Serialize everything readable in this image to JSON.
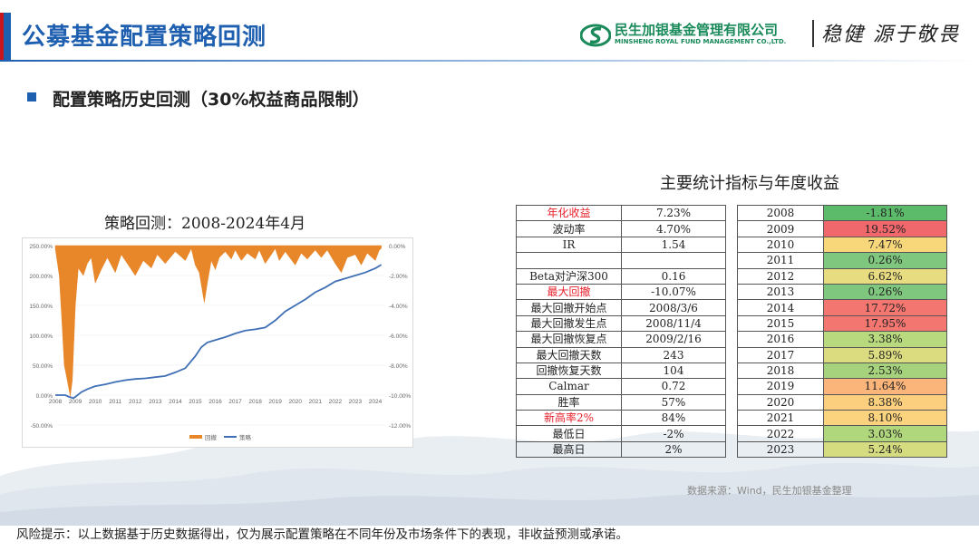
{
  "header": {
    "title": "公募基金配置策略回测",
    "logo_cn": "民生加银基金管理有限公司",
    "logo_en": "MINSHENG ROYAL FUND MANAGEMENT CO.,LTD.",
    "slogan": "稳健 源于敬畏"
  },
  "section": {
    "heading": "配置策略历史回测（30%权益商品限制）"
  },
  "chart_data": {
    "type": "line",
    "title": "策略回测：2008-2024年4月",
    "x_ticks": [
      "2008",
      "2009",
      "2010",
      "2011",
      "2012",
      "2013",
      "2014",
      "2015",
      "2016",
      "2017",
      "2018",
      "2019",
      "2020",
      "2021",
      "2022",
      "2023",
      "2024"
    ],
    "y_left_ticks": [
      "250.00%",
      "200.00%",
      "150.00%",
      "100.00%",
      "50.00%",
      "0.00%",
      "-50.00%"
    ],
    "y_left_lim": [
      -50,
      250
    ],
    "y_right_ticks": [
      "0.00%",
      "-2.00%",
      "-4.00%",
      "-6.00%",
      "-8.00%",
      "-10.00%",
      "-12.00%"
    ],
    "y_right_lim": [
      -12,
      0
    ],
    "legend": [
      "回撤",
      "策略"
    ],
    "legend_position": "bottom",
    "colors": {
      "drawdown": "#e8862a",
      "strategy": "#3f6fb5"
    },
    "series": [
      {
        "name": "策略",
        "axis": "left",
        "x": [
          2008.0,
          2008.5,
          2008.7,
          2008.9,
          2009.0,
          2009.3,
          2009.6,
          2010.0,
          2010.5,
          2011.0,
          2011.5,
          2012.0,
          2012.5,
          2013.0,
          2013.5,
          2014.0,
          2014.5,
          2015.0,
          2015.3,
          2015.6,
          2016.0,
          2016.5,
          2017.0,
          2017.5,
          2018.0,
          2018.5,
          2019.0,
          2019.5,
          2020.0,
          2020.5,
          2021.0,
          2021.5,
          2022.0,
          2022.5,
          2023.0,
          2023.5,
          2024.0,
          2024.3
        ],
        "values": [
          0,
          0,
          -3,
          -5,
          -3,
          5,
          10,
          15,
          18,
          22,
          25,
          27,
          28,
          30,
          32,
          38,
          45,
          65,
          80,
          88,
          92,
          97,
          103,
          108,
          110,
          113,
          125,
          140,
          150,
          160,
          172,
          180,
          190,
          195,
          200,
          205,
          212,
          218
        ]
      },
      {
        "name": "回撤",
        "axis": "right",
        "x": [
          2008.0,
          2008.2,
          2008.35,
          2008.45,
          2008.6,
          2008.75,
          2008.85,
          2009.0,
          2009.15,
          2009.4,
          2009.6,
          2009.8,
          2010.0,
          2010.3,
          2010.6,
          2011.0,
          2011.3,
          2011.6,
          2012.0,
          2012.4,
          2012.8,
          2013.1,
          2013.5,
          2014.0,
          2014.5,
          2014.8,
          2015.0,
          2015.2,
          2015.45,
          2015.6,
          2015.8,
          2016.0,
          2016.2,
          2016.5,
          2016.8,
          2017.0,
          2017.3,
          2017.6,
          2018.0,
          2018.2,
          2018.5,
          2018.8,
          2019.0,
          2019.2,
          2019.5,
          2020.0,
          2020.3,
          2020.6,
          2021.0,
          2021.3,
          2021.6,
          2022.0,
          2022.3,
          2022.6,
          2023.0,
          2023.3,
          2023.6,
          2024.0,
          2024.2,
          2024.3
        ],
        "values": [
          -0.2,
          -2.0,
          -5.5,
          -8.0,
          -9.0,
          -10.07,
          -9.0,
          -4.0,
          -1.5,
          -2.0,
          -1.2,
          -0.8,
          -2.5,
          -1.6,
          -0.8,
          -1.8,
          -0.6,
          -1.2,
          -2.0,
          -1.0,
          -1.5,
          -0.6,
          -1.2,
          -0.4,
          -1.0,
          -0.2,
          -1.3,
          -1.8,
          -3.8,
          -2.5,
          -1.0,
          -1.6,
          -0.8,
          -0.4,
          -0.9,
          -0.3,
          -1.0,
          -0.5,
          -0.9,
          -0.3,
          -1.2,
          -0.6,
          -0.2,
          -1.0,
          -0.4,
          -1.3,
          -0.5,
          -0.9,
          -0.3,
          -0.8,
          -0.3,
          -1.2,
          -1.8,
          -0.8,
          -0.6,
          -1.3,
          -0.5,
          -1.0,
          -0.3,
          -0.2
        ]
      }
    ]
  },
  "stats_table": {
    "title": "主要统计指标与年度收益",
    "rows": [
      {
        "label": "年化收益",
        "value": "7.23%",
        "highlight": true
      },
      {
        "label": "波动率",
        "value": "4.70%",
        "highlight": false
      },
      {
        "label": "IR",
        "value": "1.54",
        "highlight": false
      },
      {
        "label": "",
        "value": "",
        "highlight": false
      },
      {
        "label": "Beta对沪深300",
        "value": "0.16",
        "highlight": false
      },
      {
        "label": "最大回撤",
        "value": "-10.07%",
        "highlight": true
      },
      {
        "label": "最大回撤开始点",
        "value": "2008/3/6",
        "highlight": false
      },
      {
        "label": "最大回撤发生点",
        "value": "2008/11/4",
        "highlight": false
      },
      {
        "label": "最大回撤恢复点",
        "value": "2009/2/16",
        "highlight": false
      },
      {
        "label": "最大回撤天数",
        "value": "243",
        "highlight": false
      },
      {
        "label": "回撤恢复天数",
        "value": "104",
        "highlight": false
      },
      {
        "label": "Calmar",
        "value": "0.72",
        "highlight": false
      },
      {
        "label": "胜率",
        "value": "57%",
        "highlight": false
      },
      {
        "label": "新高率2%",
        "value": "84%",
        "highlight": true
      },
      {
        "label": "最低日",
        "value": "-2%",
        "highlight": false
      },
      {
        "label": "最高日",
        "value": "2%",
        "highlight": false
      }
    ]
  },
  "annual_returns": [
    {
      "year": "2008",
      "return": "-1.81%",
      "color": "#5cbb6a"
    },
    {
      "year": "2009",
      "return": "19.52%",
      "color": "#f0686c"
    },
    {
      "year": "2010",
      "return": "7.47%",
      "color": "#f8d77b"
    },
    {
      "year": "2011",
      "return": "0.26%",
      "color": "#7fc77e"
    },
    {
      "year": "2012",
      "return": "6.62%",
      "color": "#e8dc80"
    },
    {
      "year": "2013",
      "return": "0.26%",
      "color": "#7fc77e"
    },
    {
      "year": "2014",
      "return": "17.72%",
      "color": "#f37670"
    },
    {
      "year": "2015",
      "return": "17.95%",
      "color": "#f37670"
    },
    {
      "year": "2016",
      "return": "3.38%",
      "color": "#b8d97d"
    },
    {
      "year": "2017",
      "return": "5.89%",
      "color": "#dbdc80"
    },
    {
      "year": "2018",
      "return": "2.53%",
      "color": "#a6d27d"
    },
    {
      "year": "2019",
      "return": "11.64%",
      "color": "#fbb57a"
    },
    {
      "year": "2020",
      "return": "8.38%",
      "color": "#fbcf7d"
    },
    {
      "year": "2021",
      "return": "8.10%",
      "color": "#fbd27d"
    },
    {
      "year": "2022",
      "return": "3.03%",
      "color": "#b1d77d"
    },
    {
      "year": "2023",
      "return": "5.24%",
      "color": "#d5dc80"
    }
  ],
  "footer": {
    "source": "数据来源：Wind，民生加银基金整理",
    "risk": "风险提示：以上数据基于历史数据得出，仅为展示配置策略在不同年份及市场条件下的表现，非收益预测或承诺。"
  }
}
